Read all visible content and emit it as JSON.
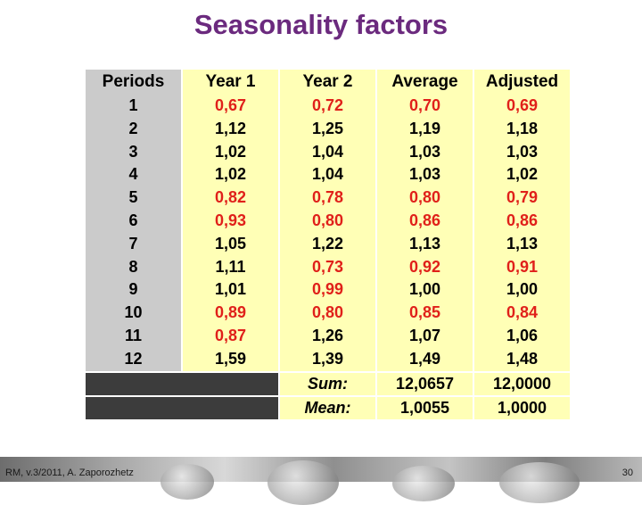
{
  "title": "Seasonality factors",
  "table": {
    "headers": [
      "Periods",
      "Year 1",
      "Year 2",
      "Average",
      "Adjusted"
    ],
    "rows": [
      {
        "period": "1",
        "year1": "0,67",
        "year2": "0,72",
        "average": "0,70",
        "adjusted": "0,69",
        "y1_red": true,
        "y2_red": true,
        "avg_red": true,
        "adj_red": true
      },
      {
        "period": "2",
        "year1": "1,12",
        "year2": "1,25",
        "average": "1,19",
        "adjusted": "1,18",
        "y1_red": false,
        "y2_red": false,
        "avg_red": false,
        "adj_red": false
      },
      {
        "period": "3",
        "year1": "1,02",
        "year2": "1,04",
        "average": "1,03",
        "adjusted": "1,03",
        "y1_red": false,
        "y2_red": false,
        "avg_red": false,
        "adj_red": false
      },
      {
        "period": "4",
        "year1": "1,02",
        "year2": "1,04",
        "average": "1,03",
        "adjusted": "1,02",
        "y1_red": false,
        "y2_red": false,
        "avg_red": false,
        "adj_red": false
      },
      {
        "period": "5",
        "year1": "0,82",
        "year2": "0,78",
        "average": "0,80",
        "adjusted": "0,79",
        "y1_red": true,
        "y2_red": true,
        "avg_red": true,
        "adj_red": true
      },
      {
        "period": "6",
        "year1": "0,93",
        "year2": "0,80",
        "average": "0,86",
        "adjusted": "0,86",
        "y1_red": true,
        "y2_red": true,
        "avg_red": true,
        "adj_red": true
      },
      {
        "period": "7",
        "year1": "1,05",
        "year2": "1,22",
        "average": "1,13",
        "adjusted": "1,13",
        "y1_red": false,
        "y2_red": false,
        "avg_red": false,
        "adj_red": false
      },
      {
        "period": "8",
        "year1": "1,11",
        "year2": "0,73",
        "average": "0,92",
        "adjusted": "0,91",
        "y1_red": false,
        "y2_red": true,
        "avg_red": true,
        "adj_red": true
      },
      {
        "period": "9",
        "year1": "1,01",
        "year2": "0,99",
        "average": "1,00",
        "adjusted": "1,00",
        "y1_red": false,
        "y2_red": true,
        "avg_red": false,
        "adj_red": false
      },
      {
        "period": "10",
        "year1": "0,89",
        "year2": "0,80",
        "average": "0,85",
        "adjusted": "0,84",
        "y1_red": true,
        "y2_red": true,
        "avg_red": true,
        "adj_red": true
      },
      {
        "period": "11",
        "year1": "0,87",
        "year2": "1,26",
        "average": "1,07",
        "adjusted": "1,06",
        "y1_red": true,
        "y2_red": false,
        "avg_red": false,
        "adj_red": false
      },
      {
        "period": "12",
        "year1": "1,59",
        "year2": "1,39",
        "average": "1,49",
        "adjusted": "1,48",
        "y1_red": false,
        "y2_red": false,
        "avg_red": false,
        "adj_red": false
      }
    ],
    "sum_label": "Sum:",
    "mean_label": "Mean:",
    "sum_average": "12,0657",
    "sum_adjusted": "12,0000",
    "mean_average": "1,0055",
    "mean_adjusted": "1,0000"
  },
  "colors": {
    "title": "#6b2a7e",
    "red_value": "#e0201a",
    "period_col_bg": "#cbcbcb",
    "value_col_bg": "#ffffb6",
    "dark_block": "#3c3c3c"
  },
  "footer": {
    "left_text": "RM, v.3/2011, A. Zaporozhetz",
    "page_number": "30"
  }
}
